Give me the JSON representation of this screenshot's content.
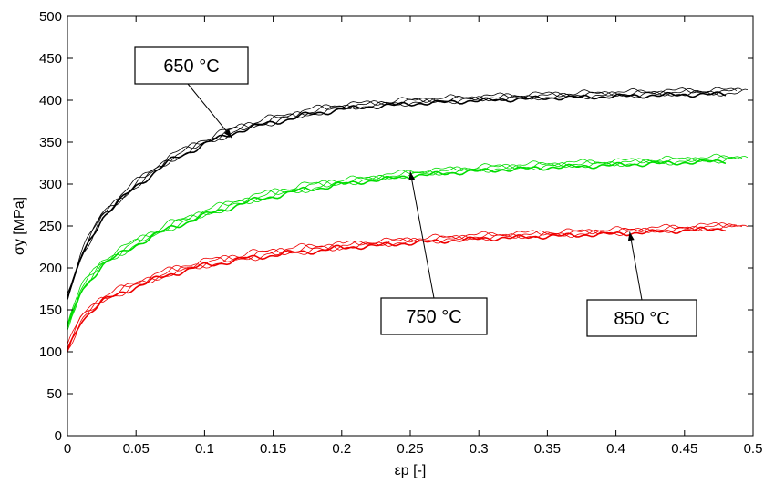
{
  "chart_data": {
    "type": "line",
    "title": "",
    "xlabel": "εp [-]",
    "ylabel": "σy [MPa]",
    "xlim": [
      0,
      0.5
    ],
    "ylim": [
      0,
      500
    ],
    "xticks": [
      0,
      0.05,
      0.1,
      0.15,
      0.2,
      0.25,
      0.3,
      0.35,
      0.4,
      0.45,
      0.5
    ],
    "yticks": [
      0,
      50,
      100,
      150,
      200,
      250,
      300,
      350,
      400,
      450,
      500
    ],
    "xtick_labels": [
      "0",
      "0.05",
      "0.1",
      "0.15",
      "0.2",
      "0.25",
      "0.3",
      "0.35",
      "0.4",
      "0.45",
      "0.5"
    ],
    "ytick_labels": [
      "0",
      "50",
      "100",
      "150",
      "200",
      "250",
      "300",
      "350",
      "400",
      "450",
      "500"
    ],
    "grid": false,
    "series": [
      {
        "color": "#000000",
        "replicates": 4,
        "x": [
          0,
          0.01,
          0.025,
          0.05,
          0.075,
          0.1,
          0.125,
          0.15,
          0.175,
          0.2,
          0.25,
          0.3,
          0.35,
          0.4,
          0.45,
          0.5
        ],
        "y": [
          165,
          215,
          262,
          300,
          330,
          350,
          366,
          376,
          385,
          392,
          398,
          402,
          405,
          407,
          409,
          410
        ]
      },
      {
        "color": "#00dd00",
        "replicates": 4,
        "x": [
          0,
          0.01,
          0.025,
          0.05,
          0.075,
          0.1,
          0.125,
          0.15,
          0.175,
          0.2,
          0.25,
          0.3,
          0.35,
          0.4,
          0.45,
          0.5
        ],
        "y": [
          130,
          175,
          205,
          230,
          250,
          265,
          278,
          288,
          296,
          302,
          312,
          318,
          322,
          325,
          328,
          331
        ]
      },
      {
        "color": "#ee0000",
        "replicates": 4,
        "x": [
          0,
          0.01,
          0.025,
          0.05,
          0.075,
          0.1,
          0.125,
          0.15,
          0.175,
          0.2,
          0.25,
          0.3,
          0.35,
          0.4,
          0.45,
          0.5
        ],
        "y": [
          103,
          140,
          162,
          180,
          195,
          205,
          212,
          218,
          222,
          226,
          232,
          237,
          240,
          243,
          247,
          251
        ]
      }
    ],
    "annotations": [
      {
        "text": "650 °C",
        "arrow_to": [
          0.12,
          355
        ]
      },
      {
        "text": "750 °C",
        "arrow_to": [
          0.25,
          315
        ]
      },
      {
        "text": "850 °C",
        "arrow_to": [
          0.41,
          243
        ]
      }
    ]
  }
}
